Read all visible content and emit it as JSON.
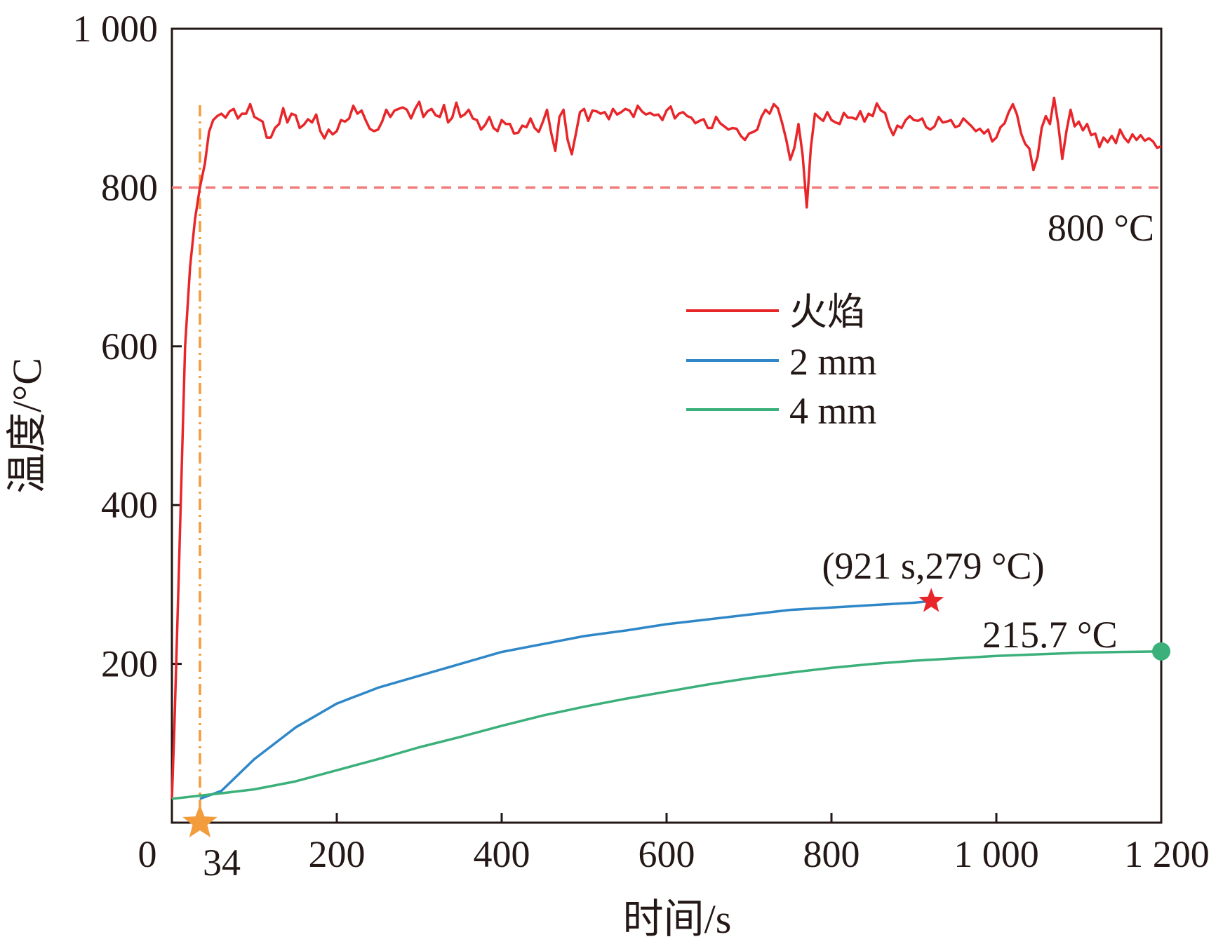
{
  "chart_data": {
    "type": "line",
    "xlabel": "时间/s",
    "ylabel": "温度/°C",
    "xlim": [
      0,
      1200
    ],
    "ylim": [
      0,
      1000
    ],
    "x_ticks": [
      0,
      200,
      400,
      600,
      800,
      1000,
      1200
    ],
    "x_tick_labels": [
      "0",
      "200",
      "400",
      "600",
      "800",
      "1 000",
      "1 200"
    ],
    "y_ticks": [
      200,
      400,
      600,
      800,
      1000
    ],
    "y_tick_labels": [
      "200",
      "400",
      "600",
      "800",
      "1 000"
    ],
    "grid": false,
    "legend_position": "center-right",
    "series": [
      {
        "name": "火焰",
        "color": "#e8262a",
        "points": [
          [
            0,
            30
          ],
          [
            3,
            120
          ],
          [
            8,
            300
          ],
          [
            12,
            450
          ],
          [
            16,
            600
          ],
          [
            22,
            700
          ],
          [
            28,
            760
          ],
          [
            34,
            800
          ],
          [
            40,
            830
          ],
          [
            45,
            870
          ],
          [
            50,
            885
          ],
          [
            55,
            890
          ],
          [
            60,
            893
          ],
          [
            65,
            888
          ],
          [
            70,
            896
          ],
          [
            75,
            899
          ],
          [
            80,
            887
          ],
          [
            85,
            893
          ],
          [
            90,
            893
          ],
          [
            95,
            905
          ],
          [
            100,
            889
          ],
          [
            105,
            886
          ],
          [
            110,
            883
          ],
          [
            115,
            863
          ],
          [
            120,
            863
          ],
          [
            125,
            875
          ],
          [
            130,
            880
          ],
          [
            135,
            900
          ],
          [
            140,
            882
          ],
          [
            145,
            893
          ],
          [
            150,
            891
          ],
          [
            155,
            875
          ],
          [
            160,
            879
          ],
          [
            165,
            886
          ],
          [
            170,
            882
          ],
          [
            175,
            892
          ],
          [
            180,
            871
          ],
          [
            185,
            862
          ],
          [
            190,
            873
          ],
          [
            195,
            867
          ],
          [
            200,
            871
          ],
          [
            205,
            885
          ],
          [
            210,
            883
          ],
          [
            215,
            887
          ],
          [
            220,
            903
          ],
          [
            225,
            893
          ],
          [
            230,
            897
          ],
          [
            235,
            885
          ],
          [
            240,
            874
          ],
          [
            245,
            871
          ],
          [
            250,
            873
          ],
          [
            255,
            883
          ],
          [
            260,
            898
          ],
          [
            265,
            889
          ],
          [
            270,
            897
          ],
          [
            275,
            899
          ],
          [
            280,
            901
          ],
          [
            285,
            898
          ],
          [
            290,
            887
          ],
          [
            295,
            899
          ],
          [
            300,
            908
          ],
          [
            305,
            889
          ],
          [
            310,
            896
          ],
          [
            315,
            899
          ],
          [
            320,
            891
          ],
          [
            325,
            889
          ],
          [
            330,
            904
          ],
          [
            335,
            882
          ],
          [
            340,
            888
          ],
          [
            345,
            907
          ],
          [
            350,
            889
          ],
          [
            355,
            892
          ],
          [
            360,
            898
          ],
          [
            365,
            887
          ],
          [
            370,
            885
          ],
          [
            375,
            873
          ],
          [
            380,
            879
          ],
          [
            385,
            889
          ],
          [
            390,
            875
          ],
          [
            395,
            871
          ],
          [
            400,
            885
          ],
          [
            405,
            880
          ],
          [
            410,
            880
          ],
          [
            415,
            868
          ],
          [
            420,
            869
          ],
          [
            425,
            878
          ],
          [
            430,
            876
          ],
          [
            435,
            887
          ],
          [
            440,
            875
          ],
          [
            445,
            870
          ],
          [
            450,
            883
          ],
          [
            455,
            898
          ],
          [
            460,
            869
          ],
          [
            465,
            846
          ],
          [
            470,
            889
          ],
          [
            475,
            898
          ],
          [
            480,
            860
          ],
          [
            485,
            842
          ],
          [
            490,
            868
          ],
          [
            495,
            895
          ],
          [
            500,
            899
          ],
          [
            505,
            884
          ],
          [
            510,
            897
          ],
          [
            515,
            896
          ],
          [
            520,
            893
          ],
          [
            525,
            895
          ],
          [
            530,
            886
          ],
          [
            535,
            899
          ],
          [
            540,
            892
          ],
          [
            545,
            895
          ],
          [
            550,
            899
          ],
          [
            555,
            897
          ],
          [
            560,
            889
          ],
          [
            565,
            903
          ],
          [
            570,
            896
          ],
          [
            575,
            892
          ],
          [
            580,
            894
          ],
          [
            585,
            891
          ],
          [
            590,
            892
          ],
          [
            595,
            885
          ],
          [
            600,
            897
          ],
          [
            605,
            902
          ],
          [
            610,
            887
          ],
          [
            615,
            893
          ],
          [
            620,
            895
          ],
          [
            625,
            890
          ],
          [
            630,
            888
          ],
          [
            635,
            881
          ],
          [
            640,
            884
          ],
          [
            645,
            886
          ],
          [
            650,
            875
          ],
          [
            655,
            875
          ],
          [
            660,
            889
          ],
          [
            665,
            881
          ],
          [
            670,
            877
          ],
          [
            675,
            873
          ],
          [
            680,
            875
          ],
          [
            685,
            874
          ],
          [
            690,
            865
          ],
          [
            695,
            860
          ],
          [
            700,
            868
          ],
          [
            705,
            870
          ],
          [
            710,
            873
          ],
          [
            715,
            889
          ],
          [
            720,
            898
          ],
          [
            725,
            893
          ],
          [
            730,
            905
          ],
          [
            735,
            900
          ],
          [
            740,
            882
          ],
          [
            745,
            861
          ],
          [
            750,
            835
          ],
          [
            755,
            850
          ],
          [
            760,
            880
          ],
          [
            765,
            841
          ],
          [
            770,
            775
          ],
          [
            775,
            850
          ],
          [
            780,
            893
          ],
          [
            785,
            888
          ],
          [
            790,
            884
          ],
          [
            795,
            895
          ],
          [
            800,
            885
          ],
          [
            805,
            882
          ],
          [
            810,
            880
          ],
          [
            815,
            894
          ],
          [
            820,
            888
          ],
          [
            825,
            888
          ],
          [
            830,
            886
          ],
          [
            835,
            896
          ],
          [
            840,
            883
          ],
          [
            845,
            893
          ],
          [
            850,
            890
          ],
          [
            855,
            906
          ],
          [
            860,
            897
          ],
          [
            865,
            894
          ],
          [
            870,
            877
          ],
          [
            875,
            866
          ],
          [
            880,
            878
          ],
          [
            885,
            875
          ],
          [
            890,
            885
          ],
          [
            895,
            890
          ],
          [
            900,
            885
          ],
          [
            905,
            884
          ],
          [
            910,
            887
          ],
          [
            915,
            876
          ],
          [
            920,
            873
          ],
          [
            925,
            877
          ],
          [
            930,
            889
          ],
          [
            935,
            882
          ],
          [
            940,
            883
          ],
          [
            945,
            885
          ],
          [
            950,
            876
          ],
          [
            955,
            878
          ],
          [
            960,
            887
          ],
          [
            965,
            882
          ],
          [
            970,
            877
          ],
          [
            975,
            871
          ],
          [
            980,
            874
          ],
          [
            985,
            868
          ],
          [
            990,
            873
          ],
          [
            995,
            858
          ],
          [
            1000,
            863
          ],
          [
            1005,
            876
          ],
          [
            1010,
            881
          ],
          [
            1015,
            895
          ],
          [
            1020,
            905
          ],
          [
            1025,
            892
          ],
          [
            1030,
            868
          ],
          [
            1035,
            855
          ],
          [
            1040,
            849
          ],
          [
            1045,
            822
          ],
          [
            1050,
            839
          ],
          [
            1055,
            875
          ],
          [
            1060,
            890
          ],
          [
            1065,
            880
          ],
          [
            1070,
            913
          ],
          [
            1075,
            880
          ],
          [
            1080,
            836
          ],
          [
            1085,
            871
          ],
          [
            1090,
            898
          ],
          [
            1095,
            877
          ],
          [
            1100,
            883
          ],
          [
            1105,
            872
          ],
          [
            1110,
            880
          ],
          [
            1115,
            866
          ],
          [
            1120,
            868
          ],
          [
            1125,
            851
          ],
          [
            1130,
            863
          ],
          [
            1135,
            857
          ],
          [
            1140,
            865
          ],
          [
            1145,
            856
          ],
          [
            1150,
            873
          ],
          [
            1155,
            863
          ],
          [
            1160,
            857
          ],
          [
            1165,
            867
          ],
          [
            1170,
            860
          ],
          [
            1175,
            866
          ],
          [
            1180,
            859
          ],
          [
            1185,
            862
          ],
          [
            1190,
            858
          ],
          [
            1195,
            850
          ],
          [
            1200,
            852
          ]
        ]
      },
      {
        "name": "2 mm",
        "color": "#2f87c8",
        "points": [
          [
            34,
            30
          ],
          [
            60,
            40
          ],
          [
            100,
            80
          ],
          [
            150,
            120
          ],
          [
            200,
            150
          ],
          [
            250,
            170
          ],
          [
            300,
            185
          ],
          [
            350,
            200
          ],
          [
            400,
            215
          ],
          [
            450,
            225
          ],
          [
            500,
            235
          ],
          [
            550,
            242
          ],
          [
            600,
            250
          ],
          [
            650,
            256
          ],
          [
            700,
            262
          ],
          [
            750,
            268
          ],
          [
            800,
            271
          ],
          [
            850,
            274
          ],
          [
            900,
            277
          ],
          [
            921,
            279
          ]
        ]
      },
      {
        "name": "4 mm",
        "color": "#3bb07a",
        "points": [
          [
            0,
            30
          ],
          [
            34,
            34
          ],
          [
            60,
            37
          ],
          [
            100,
            42
          ],
          [
            150,
            52
          ],
          [
            200,
            66
          ],
          [
            250,
            80
          ],
          [
            300,
            95
          ],
          [
            350,
            108
          ],
          [
            400,
            122
          ],
          [
            450,
            135
          ],
          [
            500,
            146
          ],
          [
            550,
            156
          ],
          [
            600,
            165
          ],
          [
            650,
            174
          ],
          [
            700,
            182
          ],
          [
            750,
            189
          ],
          [
            800,
            195
          ],
          [
            850,
            200
          ],
          [
            900,
            204
          ],
          [
            950,
            207
          ],
          [
            1000,
            210
          ],
          [
            1050,
            212
          ],
          [
            1100,
            214
          ],
          [
            1150,
            215
          ],
          [
            1200,
            215.7
          ]
        ]
      }
    ],
    "reference_line": {
      "y": 800,
      "label": "800 °C",
      "color": "#f07c7c",
      "style": "dashed"
    },
    "vertical_marker": {
      "x": 34,
      "label": "34",
      "color": "#f39c3d",
      "style": "dash-dot"
    },
    "markers": [
      {
        "series": "2 mm",
        "x": 921,
        "y": 279,
        "shape": "star",
        "color": "#e8262a",
        "label": "(921 s,279 °C)"
      },
      {
        "series": "4 mm",
        "x": 1200,
        "y": 215.7,
        "shape": "circle",
        "color": "#3bb07a",
        "label": "215.7 °C"
      },
      {
        "series": "vertical_marker",
        "x": 34,
        "y": 0,
        "shape": "star",
        "color": "#f39c3d",
        "label": ""
      }
    ]
  }
}
